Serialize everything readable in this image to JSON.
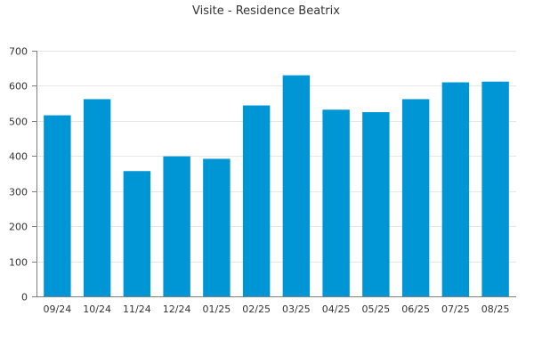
{
  "colors": {
    "bar": "#0096d6",
    "grid": "#e6e6e6",
    "axis": "#7f7f7f",
    "text": "#333333"
  },
  "chart_data": {
    "type": "bar",
    "title": "Visite - Residence Beatrix",
    "xlabel": "",
    "ylabel": "",
    "categories": [
      "09/24",
      "10/24",
      "11/24",
      "12/24",
      "01/25",
      "02/25",
      "03/25",
      "04/25",
      "05/25",
      "06/25",
      "07/25",
      "08/25"
    ],
    "values": [
      516,
      562,
      357,
      399,
      392,
      544,
      630,
      532,
      525,
      562,
      610,
      612
    ],
    "ylim": [
      0,
      700
    ],
    "yticks": [
      "0",
      "100",
      "200",
      "300",
      "400",
      "500",
      "600",
      "700"
    ],
    "grid": true,
    "legend": "none"
  }
}
